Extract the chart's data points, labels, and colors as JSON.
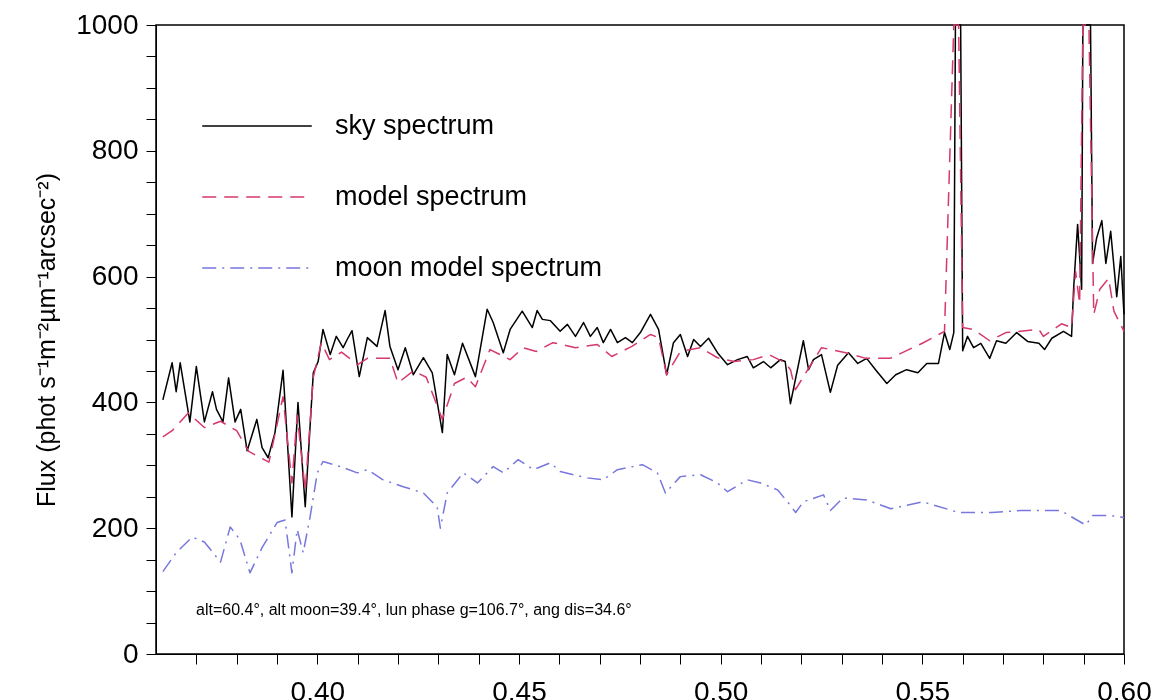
{
  "chart_data": {
    "type": "line",
    "ylabel": "Flux (phot s⁻¹m⁻²µm⁻¹arcsec⁻²)",
    "xlim": [
      0.36,
      0.6
    ],
    "ylim": [
      0,
      1000
    ],
    "xticks": [
      {
        "value": 0.37,
        "label": null
      },
      {
        "value": 0.38,
        "label": null
      },
      {
        "value": 0.39,
        "label": null
      },
      {
        "value": 0.4,
        "label": "0.40"
      },
      {
        "value": 0.41,
        "label": null
      },
      {
        "value": 0.42,
        "label": null
      },
      {
        "value": 0.43,
        "label": null
      },
      {
        "value": 0.44,
        "label": null
      },
      {
        "value": 0.45,
        "label": "0.45"
      },
      {
        "value": 0.46,
        "label": null
      },
      {
        "value": 0.47,
        "label": null
      },
      {
        "value": 0.48,
        "label": null
      },
      {
        "value": 0.49,
        "label": null
      },
      {
        "value": 0.5,
        "label": "0.50"
      },
      {
        "value": 0.51,
        "label": null
      },
      {
        "value": 0.52,
        "label": null
      },
      {
        "value": 0.53,
        "label": null
      },
      {
        "value": 0.54,
        "label": null
      },
      {
        "value": 0.55,
        "label": "0.55"
      },
      {
        "value": 0.56,
        "label": null
      },
      {
        "value": 0.57,
        "label": null
      },
      {
        "value": 0.58,
        "label": null
      },
      {
        "value": 0.59,
        "label": null
      },
      {
        "value": 0.6,
        "label": "0.60"
      }
    ],
    "yticks": [
      0,
      {
        "value": 50,
        "label": null
      },
      {
        "value": 100,
        "label": null
      },
      {
        "value": 150,
        "label": null
      },
      200,
      {
        "value": 250,
        "label": null
      },
      {
        "value": 300,
        "label": null
      },
      {
        "value": 350,
        "label": null
      },
      400,
      {
        "value": 450,
        "label": null
      },
      {
        "value": 500,
        "label": null
      },
      {
        "value": 550,
        "label": null
      },
      600,
      {
        "value": 650,
        "label": null
      },
      {
        "value": 700,
        "label": null
      },
      {
        "value": 750,
        "label": null
      },
      800,
      {
        "value": 850,
        "label": null
      },
      {
        "value": 900,
        "label": null
      },
      {
        "value": 950,
        "label": null
      },
      1000
    ],
    "legend": "top left",
    "grid": false,
    "annotations": [
      "alt=60.4°, alt moon=39.4°, lun phase g=106.7°, ang dis=34.6°"
    ],
    "series": [
      {
        "name": "sky spectrum",
        "color": "#000000",
        "line_style": "solid",
        "x": [
          0.3617,
          0.364,
          0.365,
          0.366,
          0.3684,
          0.37,
          0.372,
          0.374,
          0.375,
          0.3766,
          0.378,
          0.3796,
          0.381,
          0.3826,
          0.385,
          0.3863,
          0.3878,
          0.3895,
          0.3915,
          0.3937,
          0.3952,
          0.397,
          0.399,
          0.4002,
          0.4014,
          0.4032,
          0.4047,
          0.4064,
          0.4074,
          0.4086,
          0.4104,
          0.4124,
          0.4148,
          0.4168,
          0.418,
          0.42,
          0.4218,
          0.4238,
          0.4263,
          0.4285,
          0.431,
          0.4322,
          0.434,
          0.436,
          0.4392,
          0.4421,
          0.4436,
          0.4461,
          0.4478,
          0.4508,
          0.4533,
          0.4545,
          0.4558,
          0.4578,
          0.4602,
          0.462,
          0.464,
          0.466,
          0.4677,
          0.4694,
          0.4709,
          0.4727,
          0.4744,
          0.4764,
          0.4781,
          0.4801,
          0.4826,
          0.4846,
          0.4866,
          0.4883,
          0.49,
          0.4918,
          0.4933,
          0.495,
          0.497,
          0.4992,
          0.5017,
          0.5042,
          0.5066,
          0.5081,
          0.5106,
          0.5124,
          0.5148,
          0.516,
          0.5173,
          0.5205,
          0.5218,
          0.523,
          0.525,
          0.5272,
          0.529,
          0.5317,
          0.534,
          0.5362,
          0.5384,
          0.5412,
          0.5434,
          0.5461,
          0.5489,
          0.5511,
          0.554,
          0.5555,
          0.5568,
          0.5578,
          0.5582,
          0.5595,
          0.56,
          0.5612,
          0.5627,
          0.5645,
          0.5667,
          0.5684,
          0.5707,
          0.5734,
          0.5761,
          0.5789,
          0.5803,
          0.5821,
          0.585,
          0.587,
          0.5875,
          0.5885,
          0.5895,
          0.5898,
          0.5917,
          0.5922,
          0.5932,
          0.5945,
          0.5955,
          0.5967,
          0.5982,
          0.5992,
          0.6
        ],
        "values": [
          404,
          463,
          417,
          463,
          369,
          457,
          369,
          417,
          389,
          369,
          439,
          369,
          389,
          323,
          373,
          328,
          312,
          352,
          451,
          218,
          400,
          234,
          447,
          465,
          516,
          476,
          505,
          487,
          500,
          514,
          441,
          503,
          489,
          546,
          489,
          452,
          487,
          444,
          471,
          447,
          352,
          476,
          444,
          494,
          441,
          548,
          527,
          479,
          516,
          545,
          519,
          546,
          532,
          530,
          513,
          524,
          505,
          527,
          505,
          519,
          495,
          516,
          495,
          503,
          495,
          511,
          540,
          516,
          444,
          495,
          508,
          473,
          500,
          489,
          502,
          479,
          460,
          468,
          473,
          455,
          465,
          455,
          468,
          465,
          398,
          498,
          452,
          468,
          476,
          416,
          459,
          479,
          462,
          470,
          452,
          430,
          444,
          452,
          447,
          462,
          462,
          511,
          484,
          511,
          1000,
          1000,
          482,
          505,
          487,
          494,
          470,
          498,
          494,
          511,
          497,
          494,
          484,
          502,
          513,
          505,
          580,
          683,
          580,
          1000,
          1000,
          621,
          661,
          689,
          621,
          672,
          568,
          632,
          540
        ]
      },
      {
        "name": "model spectrum",
        "color": "#d6396a",
        "line_style": "dashed",
        "x": [
          0.3617,
          0.364,
          0.368,
          0.372,
          0.376,
          0.38,
          0.383,
          0.388,
          0.3915,
          0.3937,
          0.395,
          0.397,
          0.399,
          0.401,
          0.403,
          0.406,
          0.41,
          0.4124,
          0.415,
          0.418,
          0.42,
          0.4238,
          0.427,
          0.431,
          0.434,
          0.437,
          0.4392,
          0.4428,
          0.4478,
          0.451,
          0.4543,
          0.4584,
          0.464,
          0.4694,
          0.473,
          0.478,
          0.4826,
          0.4846,
          0.4866,
          0.49,
          0.495,
          0.4992,
          0.5034,
          0.5081,
          0.512,
          0.516,
          0.5173,
          0.5185,
          0.525,
          0.531,
          0.536,
          0.542,
          0.55,
          0.5555,
          0.5578,
          0.559,
          0.56,
          0.5627,
          0.5667,
          0.5707,
          0.5789,
          0.58,
          0.5845,
          0.587,
          0.588,
          0.589,
          0.5898,
          0.5913,
          0.5925,
          0.594,
          0.5962,
          0.5975,
          0.6
        ],
        "values": [
          345,
          355,
          383,
          360,
          370,
          355,
          322,
          305,
          409,
          272,
          380,
          260,
          440,
          495,
          468,
          480,
          460,
          470,
          470,
          470,
          431,
          450,
          440,
          373,
          430,
          440,
          425,
          484,
          468,
          487,
          481,
          495,
          487,
          492,
          473,
          489,
          508,
          503,
          444,
          481,
          487,
          471,
          465,
          468,
          476,
          463,
          452,
          420,
          487,
          479,
          470,
          470,
          494,
          513,
          1000,
          1000,
          519,
          516,
          498,
          511,
          516,
          505,
          525,
          519,
          608,
          557,
          1000,
          1000,
          540,
          580,
          597,
          545,
          513
        ]
      },
      {
        "name": "moon model spectrum",
        "color": "#7777dd",
        "line_style": "dashdot",
        "x": [
          0.3617,
          0.365,
          0.369,
          0.372,
          0.376,
          0.3784,
          0.3808,
          0.3833,
          0.3863,
          0.39,
          0.392,
          0.3937,
          0.395,
          0.3965,
          0.3982,
          0.4,
          0.4014,
          0.4057,
          0.4099,
          0.4124,
          0.4163,
          0.4213,
          0.4263,
          0.4297,
          0.4305,
          0.4322,
          0.4362,
          0.4397,
          0.4436,
          0.4461,
          0.4498,
          0.4536,
          0.4578,
          0.4602,
          0.4669,
          0.4709,
          0.4744,
          0.4806,
          0.4843,
          0.4863,
          0.49,
          0.495,
          0.4992,
          0.5017,
          0.5066,
          0.5099,
          0.5141,
          0.5168,
          0.5186,
          0.5205,
          0.5255,
          0.5272,
          0.5303,
          0.5362,
          0.5422,
          0.5501,
          0.559,
          0.5672,
          0.5744,
          0.5843,
          0.5905,
          0.5922,
          0.5967,
          0.6
        ],
        "values": [
          131,
          161,
          186,
          178,
          146,
          202,
          182,
          129,
          169,
          209,
          213,
          129,
          198,
          161,
          218,
          288,
          306,
          298,
          288,
          293,
          277,
          266,
          256,
          234,
          200,
          256,
          288,
          272,
          298,
          288,
          309,
          293,
          304,
          290,
          280,
          277,
          293,
          301,
          288,
          256,
          282,
          285,
          272,
          258,
          277,
          272,
          261,
          240,
          225,
          242,
          253,
          228,
          248,
          245,
          231,
          242,
          225,
          225,
          228,
          228,
          205,
          220,
          220,
          217
        ]
      }
    ]
  }
}
